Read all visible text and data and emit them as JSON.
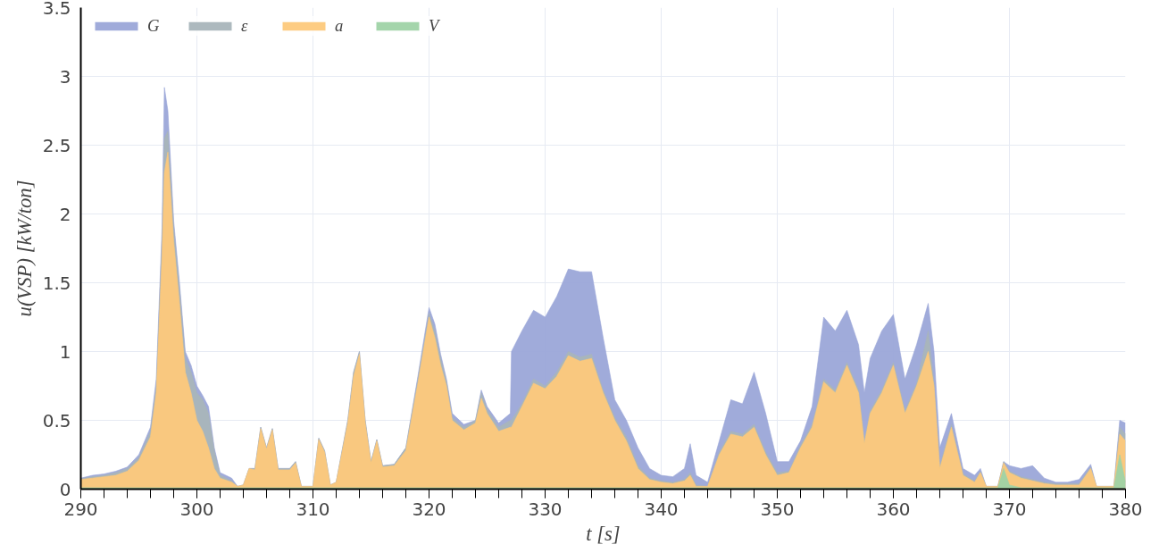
{
  "chart_data": {
    "type": "area",
    "xlabel": "t [s]",
    "ylabel": "u(VSP) [kW/ton]",
    "x": [
      290,
      291,
      292,
      293,
      294,
      295,
      296,
      296.5,
      297,
      297.2,
      297.5,
      298,
      298.5,
      299,
      299.5,
      300,
      300.5,
      301,
      301.5,
      302,
      303,
      303.5,
      304,
      304.5,
      305,
      305.5,
      306,
      306.5,
      307,
      308,
      308.5,
      309,
      310,
      310.5,
      311,
      311.5,
      312,
      313,
      313.5,
      314,
      314.5,
      315,
      315.5,
      316,
      317,
      318,
      319,
      320,
      320.5,
      321,
      321.5,
      322,
      323,
      324,
      324.5,
      325,
      326,
      327,
      327.1,
      328,
      329,
      330,
      331,
      332,
      333,
      334,
      335,
      336,
      337,
      338,
      339,
      340,
      341,
      342,
      342.5,
      343,
      344,
      345,
      346,
      347,
      348,
      349,
      350,
      351,
      352,
      353,
      354,
      355,
      356,
      357,
      357.5,
      358,
      359,
      360,
      361,
      362,
      363,
      363.5,
      364,
      365,
      366,
      367,
      367.5,
      368,
      369,
      369.5,
      370,
      371,
      372,
      373,
      374,
      375,
      376,
      377,
      377.5,
      379,
      379.5,
      380
    ],
    "series": [
      {
        "name": "G",
        "color": "#9ba6d8",
        "values": [
          0.08,
          0.1,
          0.11,
          0.13,
          0.16,
          0.25,
          0.45,
          0.8,
          1.9,
          2.92,
          2.75,
          1.95,
          1.5,
          1.0,
          0.9,
          0.75,
          0.68,
          0.6,
          0.3,
          0.12,
          0.08,
          0.02,
          0.03,
          0.15,
          0.15,
          0.45,
          0.3,
          0.44,
          0.15,
          0.15,
          0.2,
          0.02,
          0.02,
          0.37,
          0.28,
          0.03,
          0.05,
          0.5,
          0.85,
          1.0,
          0.5,
          0.2,
          0.36,
          0.17,
          0.18,
          0.3,
          0.8,
          1.32,
          1.2,
          0.98,
          0.8,
          0.55,
          0.47,
          0.5,
          0.72,
          0.6,
          0.48,
          0.55,
          1.0,
          1.15,
          1.3,
          1.25,
          1.4,
          1.6,
          1.58,
          1.58,
          1.1,
          0.65,
          0.5,
          0.3,
          0.15,
          0.1,
          0.09,
          0.15,
          0.33,
          0.1,
          0.05,
          0.35,
          0.65,
          0.62,
          0.85,
          0.55,
          0.2,
          0.2,
          0.35,
          0.6,
          1.25,
          1.15,
          1.3,
          1.05,
          0.7,
          0.95,
          1.15,
          1.27,
          0.8,
          1.05,
          1.35,
          1.0,
          0.3,
          0.55,
          0.15,
          0.1,
          0.15,
          0.02,
          0.02,
          0.2,
          0.17,
          0.15,
          0.17,
          0.08,
          0.05,
          0.05,
          0.07,
          0.18,
          0.02,
          0.02,
          0.5,
          0.48
        ]
      },
      {
        "name": "ε",
        "color": "#a9b5bb",
        "values": [
          0.075,
          0.09,
          0.1,
          0.12,
          0.15,
          0.23,
          0.42,
          0.75,
          1.8,
          2.55,
          2.6,
          1.9,
          1.45,
          0.95,
          0.85,
          0.7,
          0.65,
          0.55,
          0.28,
          0.1,
          0.06,
          0.02,
          0.03,
          0.15,
          0.15,
          0.45,
          0.3,
          0.44,
          0.15,
          0.15,
          0.2,
          0.02,
          0.02,
          0.37,
          0.28,
          0.03,
          0.05,
          0.5,
          0.85,
          1.0,
          0.5,
          0.2,
          0.36,
          0.17,
          0.18,
          0.3,
          0.78,
          1.28,
          1.15,
          0.95,
          0.78,
          0.52,
          0.45,
          0.5,
          0.7,
          0.58,
          0.45,
          0.5,
          0.5,
          0.62,
          0.8,
          0.75,
          0.85,
          1.0,
          0.96,
          0.98,
          0.72,
          0.52,
          0.38,
          0.17,
          0.08,
          0.06,
          0.05,
          0.07,
          0.12,
          0.03,
          0.02,
          0.27,
          0.42,
          0.4,
          0.47,
          0.27,
          0.12,
          0.13,
          0.32,
          0.47,
          0.8,
          0.72,
          0.92,
          0.72,
          0.35,
          0.57,
          0.72,
          0.92,
          0.57,
          0.77,
          1.15,
          0.78,
          0.17,
          0.47,
          0.11,
          0.06,
          0.13,
          0.02,
          0.02,
          0.2,
          0.13,
          0.09,
          0.07,
          0.05,
          0.04,
          0.04,
          0.04,
          0.16,
          0.02,
          0.02,
          0.45,
          0.4
        ]
      },
      {
        "name": "a",
        "color": "#fdc97b",
        "values": [
          0.07,
          0.08,
          0.09,
          0.1,
          0.13,
          0.21,
          0.38,
          0.7,
          1.7,
          2.3,
          2.45,
          1.8,
          1.35,
          0.85,
          0.7,
          0.5,
          0.42,
          0.3,
          0.15,
          0.08,
          0.05,
          0.02,
          0.03,
          0.15,
          0.14,
          0.44,
          0.29,
          0.43,
          0.14,
          0.14,
          0.19,
          0.02,
          0.02,
          0.36,
          0.27,
          0.03,
          0.05,
          0.48,
          0.82,
          0.98,
          0.48,
          0.19,
          0.35,
          0.16,
          0.17,
          0.28,
          0.75,
          1.25,
          1.1,
          0.9,
          0.75,
          0.5,
          0.43,
          0.48,
          0.66,
          0.55,
          0.42,
          0.45,
          0.45,
          0.6,
          0.77,
          0.73,
          0.82,
          0.97,
          0.93,
          0.95,
          0.7,
          0.5,
          0.35,
          0.15,
          0.07,
          0.05,
          0.04,
          0.06,
          0.1,
          0.02,
          0.02,
          0.25,
          0.4,
          0.38,
          0.45,
          0.25,
          0.1,
          0.12,
          0.3,
          0.45,
          0.78,
          0.7,
          0.9,
          0.7,
          0.33,
          0.55,
          0.7,
          0.9,
          0.55,
          0.75,
          1.0,
          0.75,
          0.15,
          0.45,
          0.1,
          0.05,
          0.12,
          0.02,
          0.02,
          0.19,
          0.12,
          0.08,
          0.06,
          0.04,
          0.03,
          0.03,
          0.03,
          0.15,
          0.02,
          0.02,
          0.4,
          0.35
        ]
      },
      {
        "name": "V",
        "color": "#9fd3a6",
        "values": [
          0.01,
          0.01,
          0.01,
          0.01,
          0.01,
          0.01,
          0.01,
          0.01,
          0.01,
          0.01,
          0.01,
          0.01,
          0.01,
          0.01,
          0.01,
          0.01,
          0.01,
          0.01,
          0.01,
          0.01,
          0.01,
          0.01,
          0.01,
          0.01,
          0.01,
          0.01,
          0.01,
          0.01,
          0.01,
          0.01,
          0.01,
          0.01,
          0.01,
          0.01,
          0.01,
          0.01,
          0.01,
          0.01,
          0.01,
          0.01,
          0.01,
          0.01,
          0.01,
          0.01,
          0.01,
          0.01,
          0.01,
          0.01,
          0.01,
          0.01,
          0.01,
          0.01,
          0.01,
          0.01,
          0.01,
          0.01,
          0.01,
          0.01,
          0.01,
          0.01,
          0.01,
          0.01,
          0.01,
          0.01,
          0.01,
          0.01,
          0.01,
          0.01,
          0.01,
          0.01,
          0.01,
          0.01,
          0.01,
          0.01,
          0.01,
          0.01,
          0.01,
          0.01,
          0.01,
          0.01,
          0.01,
          0.01,
          0.01,
          0.01,
          0.01,
          0.01,
          0.01,
          0.01,
          0.01,
          0.01,
          0.01,
          0.01,
          0.01,
          0.01,
          0.01,
          0.01,
          0.01,
          0.01,
          0.01,
          0.01,
          0.01,
          0.01,
          0.01,
          0.01,
          0.01,
          0.15,
          0.03,
          0.01,
          0.01,
          0.01,
          0.01,
          0.01,
          0.01,
          0.01,
          0.01,
          0.01,
          0.25,
          0.05
        ]
      }
    ],
    "xlim": [
      290,
      380
    ],
    "xticks": [
      290,
      300,
      310,
      320,
      330,
      340,
      350,
      360,
      370,
      380
    ],
    "ylim": [
      0,
      3.5
    ],
    "yticks": [
      0,
      0.5,
      1,
      1.5,
      2,
      2.5,
      3,
      3.5
    ],
    "grid": true,
    "legend": "top left"
  }
}
